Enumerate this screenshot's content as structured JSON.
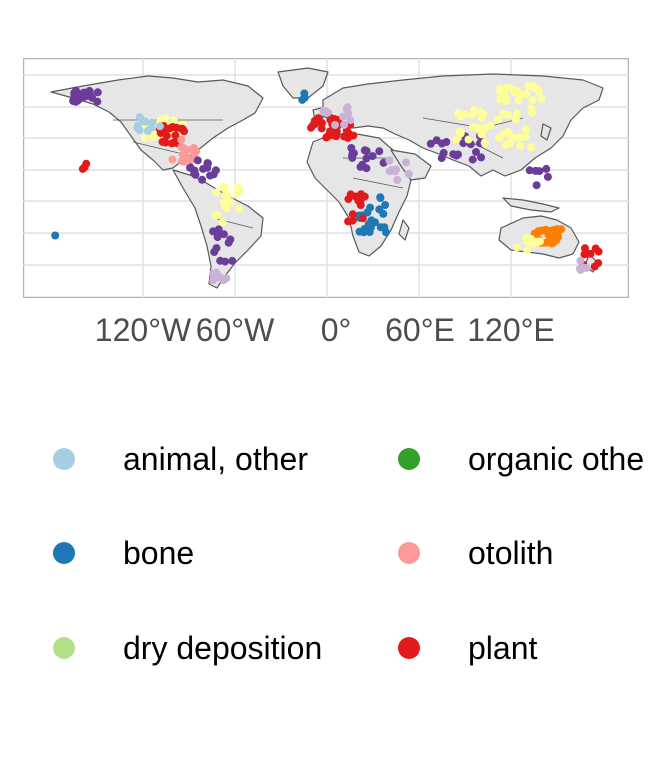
{
  "map": {
    "x_axis_ticks": [
      "120°W",
      "60°W",
      "0°",
      "60°E",
      "120°E"
    ],
    "colors": {
      "panel_border": "#b3b3b3",
      "grid": "#e0e0e0",
      "land": "#e6e6e6",
      "coast": "#595959"
    },
    "category_colors": {
      "animal, other": "#a6cee3",
      "bone": "#1f78b4",
      "dry deposition": "#b2df8a",
      "organic other": "#33a02c",
      "otolith": "#fb9a99",
      "plant": "#e31a1c",
      "unlisted_orange": "#ff7f00",
      "unlisted_lilac": "#cab2d6",
      "unlisted_purple": "#6a3d9a",
      "unlisted_yellow": "#ffff99"
    }
  },
  "legend": {
    "title_fragment": ")",
    "items": [
      {
        "label": "animal, other",
        "color": "#a6cee3"
      },
      {
        "label": "bone",
        "color": "#1f78b4"
      },
      {
        "label": "dry deposition",
        "color": "#b2df8a"
      },
      {
        "label": "organic othe",
        "color": "#33a02c"
      },
      {
        "label": "otolith",
        "color": "#fb9a99"
      },
      {
        "label": "plant",
        "color": "#e31a1c"
      }
    ]
  }
}
